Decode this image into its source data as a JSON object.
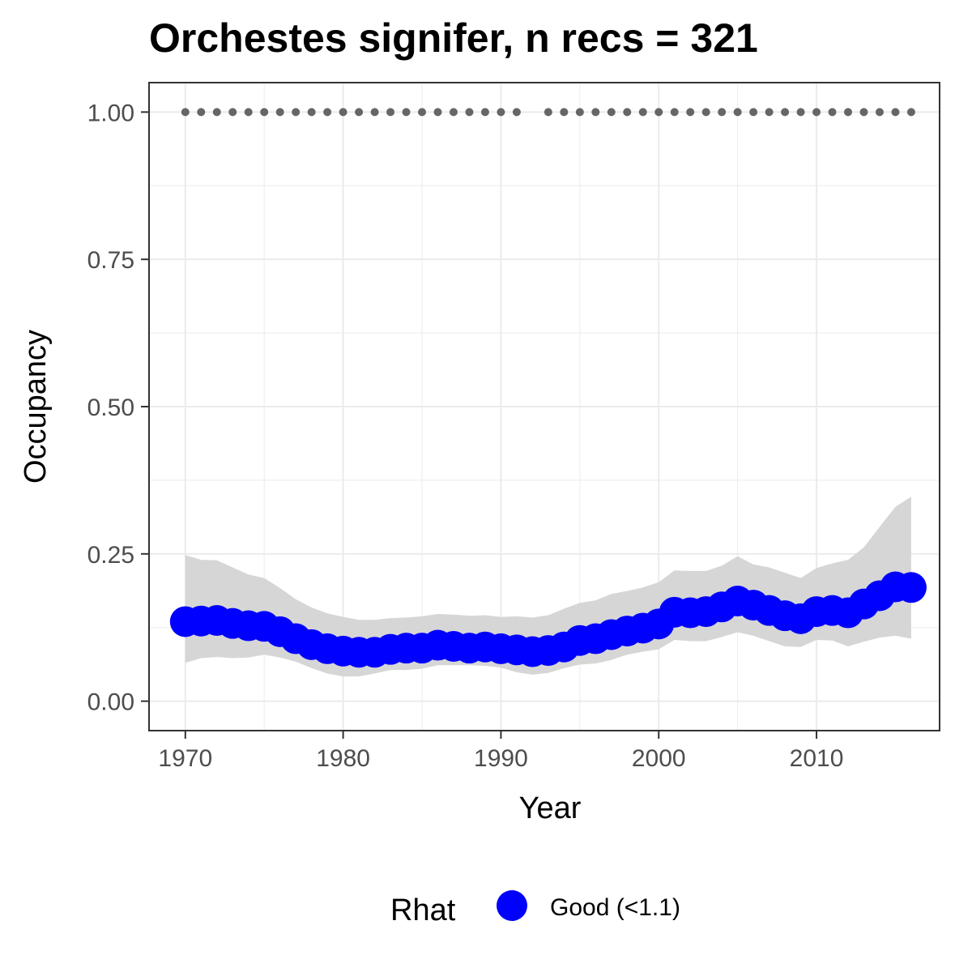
{
  "chart_data": {
    "type": "line",
    "title": "Orchestes signifer, n recs = 321",
    "xlabel": "Year",
    "ylabel": "Occupancy",
    "xlim": [
      1967.7,
      2017.8
    ],
    "ylim": [
      -0.05,
      1.05
    ],
    "xticks": [
      1970,
      1980,
      1990,
      2000,
      2010
    ],
    "xtick_labels": [
      "1970",
      "1980",
      "1990",
      "2000",
      "2010"
    ],
    "yticks": [
      0,
      0.25,
      0.5,
      0.75,
      1
    ],
    "ytick_labels": [
      "0.00",
      "0.25",
      "0.50",
      "0.75",
      "1.00"
    ],
    "grid": true,
    "legend_position": "bottom",
    "colors": {
      "series": "#0000ff",
      "ribbon": "#d6d6d6",
      "record_points": "#666666",
      "grid": "#ebebeb",
      "panel_border": "#333333"
    },
    "series": [
      {
        "name": "Good (<1.1)",
        "x": [
          1970,
          1971,
          1972,
          1973,
          1974,
          1975,
          1976,
          1977,
          1978,
          1979,
          1980,
          1981,
          1982,
          1983,
          1984,
          1985,
          1986,
          1987,
          1988,
          1989,
          1990,
          1991,
          1992,
          1993,
          1994,
          1995,
          1996,
          1997,
          1998,
          1999,
          2000,
          2001,
          2002,
          2003,
          2004,
          2005,
          2006,
          2007,
          2008,
          2009,
          2010,
          2011,
          2012,
          2013,
          2014,
          2015,
          2016
        ],
        "y": [
          0.135,
          0.136,
          0.137,
          0.132,
          0.128,
          0.127,
          0.118,
          0.106,
          0.096,
          0.089,
          0.085,
          0.083,
          0.083,
          0.088,
          0.09,
          0.09,
          0.095,
          0.093,
          0.09,
          0.092,
          0.089,
          0.087,
          0.084,
          0.086,
          0.092,
          0.103,
          0.106,
          0.113,
          0.119,
          0.124,
          0.131,
          0.151,
          0.15,
          0.152,
          0.16,
          0.17,
          0.163,
          0.154,
          0.145,
          0.14,
          0.152,
          0.154,
          0.15,
          0.165,
          0.179,
          0.194,
          0.193
        ],
        "lower": [
          0.065,
          0.073,
          0.075,
          0.073,
          0.074,
          0.079,
          0.074,
          0.067,
          0.056,
          0.047,
          0.042,
          0.042,
          0.047,
          0.053,
          0.053,
          0.055,
          0.061,
          0.061,
          0.061,
          0.06,
          0.057,
          0.049,
          0.045,
          0.048,
          0.056,
          0.062,
          0.064,
          0.07,
          0.079,
          0.084,
          0.088,
          0.104,
          0.102,
          0.102,
          0.109,
          0.117,
          0.111,
          0.102,
          0.093,
          0.092,
          0.104,
          0.103,
          0.093,
          0.101,
          0.108,
          0.111,
          0.106
        ],
        "upper": [
          0.248,
          0.24,
          0.239,
          0.227,
          0.215,
          0.209,
          0.192,
          0.173,
          0.159,
          0.149,
          0.143,
          0.138,
          0.138,
          0.141,
          0.142,
          0.144,
          0.148,
          0.147,
          0.145,
          0.146,
          0.143,
          0.144,
          0.142,
          0.146,
          0.157,
          0.167,
          0.171,
          0.182,
          0.187,
          0.193,
          0.202,
          0.222,
          0.221,
          0.221,
          0.23,
          0.246,
          0.232,
          0.227,
          0.218,
          0.209,
          0.226,
          0.234,
          0.24,
          0.261,
          0.296,
          0.33,
          0.347
        ]
      }
    ],
    "record_years": [
      1970,
      1971,
      1972,
      1973,
      1974,
      1975,
      1976,
      1977,
      1978,
      1979,
      1980,
      1981,
      1982,
      1983,
      1984,
      1985,
      1986,
      1987,
      1988,
      1989,
      1990,
      1991,
      1993,
      1994,
      1995,
      1996,
      1997,
      1998,
      1999,
      2000,
      2001,
      2002,
      2003,
      2004,
      2005,
      2006,
      2007,
      2008,
      2009,
      2010,
      2011,
      2012,
      2013,
      2014,
      2015,
      2016
    ],
    "record_value": 1
  },
  "legend": {
    "title": "Rhat",
    "label": "Good (<1.1)"
  }
}
